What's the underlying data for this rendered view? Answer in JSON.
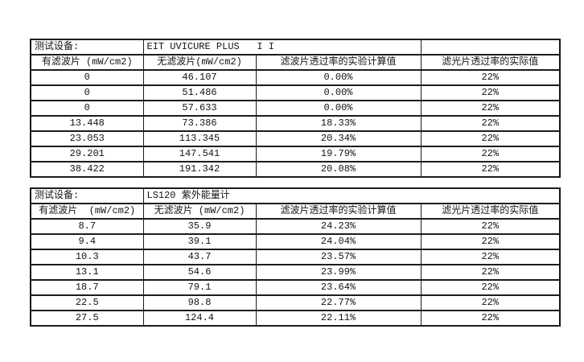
{
  "page": {
    "background_color": "#ffffff",
    "border_color": "#1c1c1c",
    "text_color": "#141414"
  },
  "tables": [
    {
      "title_label": "测试设备:",
      "device": "EIT UVICURE PLUS   I I",
      "headers": [
        "有滤波片 (mW/cm2)",
        "无滤波片(mW/cm2)",
        "滤波片透过率的实验计算值",
        "滤光片透过率的实际值"
      ],
      "rows": [
        [
          "0",
          "46.107",
          "0.00%",
          "22%"
        ],
        [
          "0",
          "51.486",
          "0.00%",
          "22%"
        ],
        [
          "0",
          "57.633",
          "0.00%",
          "22%"
        ],
        [
          "13.448",
          "73.386",
          "18.33%",
          "22%"
        ],
        [
          "23.053",
          "113.345",
          "20.34%",
          "22%"
        ],
        [
          "29.201",
          "147.541",
          "19.79%",
          "22%"
        ],
        [
          "38.422",
          "191.342",
          "20.08%",
          "22%"
        ]
      ]
    },
    {
      "title_label": "测试设备:",
      "device": "LS120 紫外能量计",
      "headers": [
        "有滤波片  (mW/cm2)",
        "无滤波片 (mW/cm2)",
        "滤波片透过率的实验计算值",
        "滤光片透过率的实际值"
      ],
      "rows": [
        [
          "8.7",
          "35.9",
          "24.23%",
          "22%"
        ],
        [
          "9.4",
          "39.1",
          "24.04%",
          "22%"
        ],
        [
          "10.3",
          "43.7",
          "23.57%",
          "22%"
        ],
        [
          "13.1",
          "54.6",
          "23.99%",
          "22%"
        ],
        [
          "18.7",
          "79.1",
          "23.64%",
          "22%"
        ],
        [
          "22.5",
          "98.8",
          "22.77%",
          "22%"
        ],
        [
          "27.5",
          "124.4",
          "22.11%",
          "22%"
        ]
      ]
    }
  ]
}
